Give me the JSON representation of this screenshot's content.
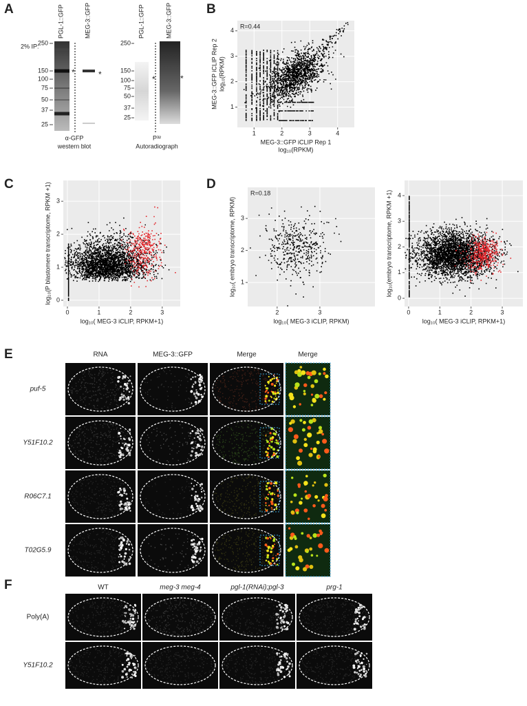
{
  "figure": {
    "panel_labels": [
      "A",
      "B",
      "C",
      "D",
      "E",
      "F"
    ],
    "A": {
      "ip_label": "2% IP:",
      "lanes": [
        "PGL-1::GFP",
        "MEG-3::GFP",
        "PGL-1::GFP",
        "MEG-3::GFP"
      ],
      "western_markers": [
        250,
        150,
        100,
        75,
        50,
        37,
        25
      ],
      "autorad_markers": [
        250,
        150,
        100,
        75,
        50,
        37,
        25
      ],
      "western_caption": [
        "α-GFP",
        "western blot"
      ],
      "autorad_caption": [
        "P³²",
        "Autoradiograph"
      ],
      "asterisk": "*"
    },
    "E": {
      "columns": [
        "RNA",
        "MEG-3::GFP",
        "Merge",
        "Merge"
      ],
      "rows": [
        "puf-5",
        "Y51F10.2",
        "R06C7.1",
        "T02G5.9"
      ]
    },
    "F": {
      "columns": [
        "WT",
        "meg-3 meg-4",
        "pgl-1(RNAi);pgl-3",
        "prg-1"
      ],
      "rows": [
        "Poly(A)",
        "Y51F10.2"
      ]
    }
  },
  "chart_data": [
    {
      "type": "scatter",
      "xlim": [
        0.4,
        4.6
      ],
      "ylim": [
        0.2,
        4.4
      ],
      "xticks": [
        1,
        2,
        3,
        4
      ],
      "yticks": [
        1,
        2,
        3,
        4
      ],
      "xlabel": [
        "MEG-3::GFP iCLIP Rep 1",
        "log₁₀(RPKM)"
      ],
      "ylabel": [
        "MEG-3::GFP iCLIP Rep 2",
        "log₁₀(RPKM)"
      ],
      "annotation": "R=0.44",
      "grid": true,
      "point_colors": [
        "#000000"
      ]
    },
    {
      "type": "scatter",
      "xlim": [
        -0.13,
        3.57
      ],
      "ylim": [
        -0.19,
        3.63
      ],
      "xticks": [
        0,
        1,
        2,
        3
      ],
      "yticks": [
        0,
        1,
        2,
        3
      ],
      "xlabel": [
        "log₁₀( MEG-3 iCLIP, RPKM+1)"
      ],
      "ylabel": [
        "log₁₀(P blastomere transcriptome, RPKM +1)"
      ],
      "grid": true,
      "point_colors": [
        "#000000",
        "#e3262b"
      ]
    },
    {
      "type": "scatter",
      "xlim": [
        1.31,
        4.29
      ],
      "ylim": [
        0.25,
        3.97
      ],
      "xticks": [
        2,
        3
      ],
      "yticks": [
        1,
        2,
        3
      ],
      "xlabel": [
        "log₁₀( MEG-3 iCLIP, RPKM)"
      ],
      "ylabel": [
        "log₁₀( embryo transcriptome, RPKM)"
      ],
      "annotation": "R=0.18",
      "grid": true,
      "point_colors": [
        "#000000"
      ]
    },
    {
      "type": "scatter",
      "xlim": [
        -0.13,
        3.66
      ],
      "ylim": [
        -0.32,
        4.59
      ],
      "xticks": [
        0,
        1,
        2,
        3
      ],
      "yticks": [
        0,
        1,
        2,
        3,
        4
      ],
      "xlabel": [
        "log₁₀( MEG-3 iCLIP, RPKM+1)"
      ],
      "ylabel": [
        "log₁₀(embryo transcriptome, RPKM +1)"
      ],
      "grid": true,
      "point_colors": [
        "#000000",
        "#e3262b"
      ]
    }
  ]
}
